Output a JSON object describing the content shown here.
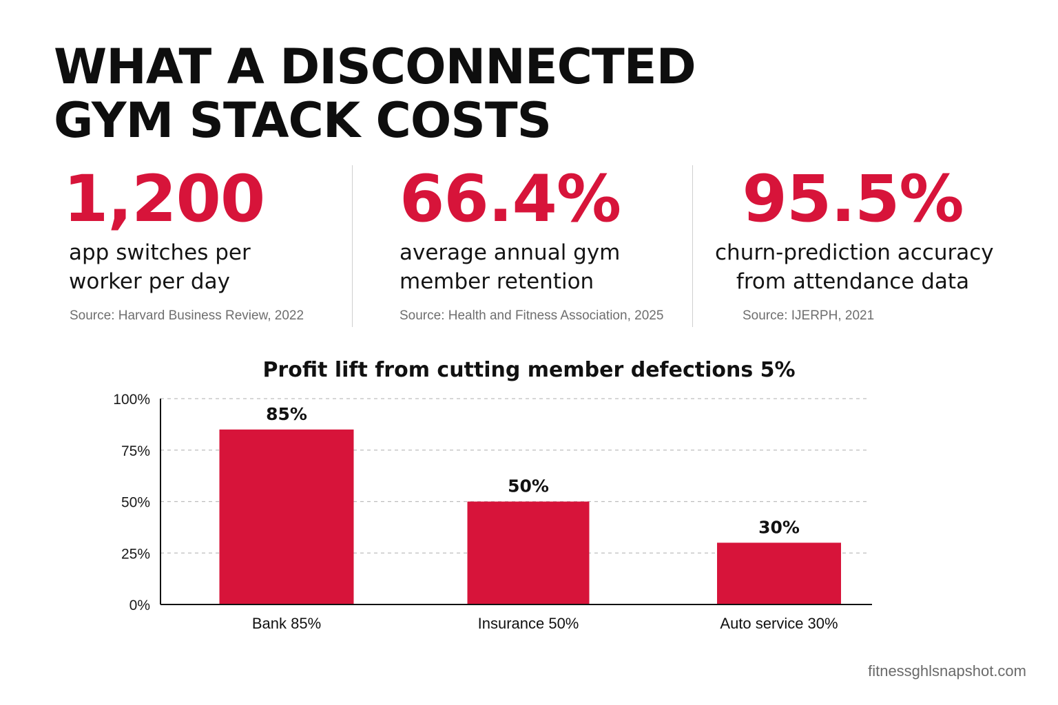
{
  "title_line1": "WHAT A DISCONNECTED",
  "title_line2": "GYM STACK COSTS",
  "stats": [
    {
      "value": "1,200",
      "line1": "app switches per",
      "line2": "worker per day",
      "source": "Source: Harvard Business Review, 2022"
    },
    {
      "value": "66.4%",
      "line1": "average annual gym",
      "line2": "member retention",
      "source": "Source: Health and Fitness Association, 2025"
    },
    {
      "value": "95.5%",
      "line1": "churn-prediction accuracy",
      "line2": "from attendance data",
      "source": "Source: IJERPH, 2021"
    }
  ],
  "chart_data": {
    "type": "bar",
    "title": "Profit lift from cutting member defections 5%",
    "categories": [
      "Bank 85%",
      "Insurance 50%",
      "Auto service 30%"
    ],
    "values": [
      85,
      50,
      30
    ],
    "data_labels": [
      "85%",
      "50%",
      "30%"
    ],
    "ylim": [
      0,
      100
    ],
    "yticks": [
      0,
      25,
      50,
      75,
      100
    ],
    "ytick_labels": [
      "0%",
      "25%",
      "50%",
      "75%",
      "100%"
    ],
    "grid": "dashed horizontal",
    "bar_color": "#d7143a"
  },
  "footer": "fitnessghlsnapshot.com"
}
